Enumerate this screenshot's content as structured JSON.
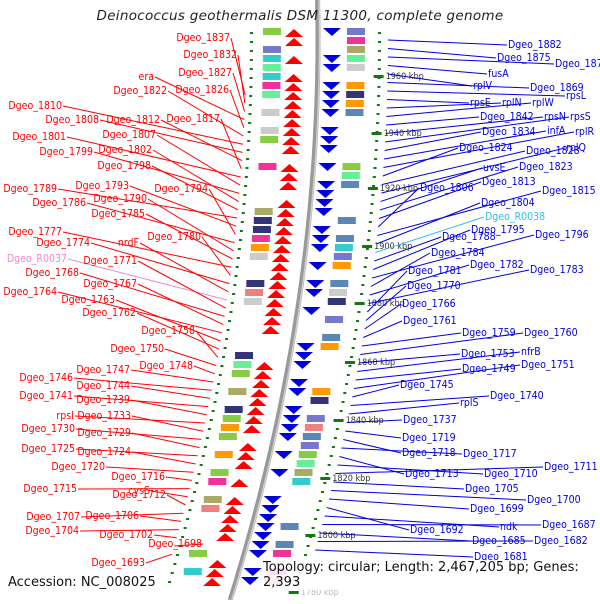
{
  "title": "Deinococcus geothermalis DSM 11300, complete genome",
  "footer": {
    "accession": "Accession: NC_008025",
    "summary": "Topology: circular; Length: 2,467,205 bp; Genes: 2,393"
  },
  "colors": {
    "forward": "#ff0000",
    "reverse": "#0000dd",
    "rna_left": "#ee88cc",
    "rna_right": "#33bbee",
    "tick": "#117711",
    "backbone": "#888888"
  },
  "ruler": [
    {
      "label": "1960 kbp"
    },
    {
      "label": "1940 kbp"
    },
    {
      "label": "1920 kbp"
    },
    {
      "label": "1900 kbp"
    },
    {
      "label": "1880 kbp"
    },
    {
      "label": "1860 kbp"
    },
    {
      "label": "1840 kbp"
    },
    {
      "label": "1820 kbp"
    },
    {
      "label": "1800 kbp"
    },
    {
      "label": "1780 kbp"
    }
  ],
  "left_labels": [
    {
      "text": "Dgeo_1837",
      "type": "gene"
    },
    {
      "text": "Dgeo_1832",
      "type": "gene"
    },
    {
      "text": "Dgeo_1827",
      "type": "gene"
    },
    {
      "text": "era",
      "type": "gene"
    },
    {
      "text": "Dgeo_1826",
      "type": "gene"
    },
    {
      "text": "Dgeo_1822",
      "type": "gene"
    },
    {
      "text": "Dgeo_1810",
      "type": "gene"
    },
    {
      "text": "Dgeo_1808",
      "type": "gene"
    },
    {
      "text": "Dgeo_1812",
      "type": "gene"
    },
    {
      "text": "Dgeo_1817",
      "type": "gene"
    },
    {
      "text": "Dgeo_1801",
      "type": "gene"
    },
    {
      "text": "Dgeo_1807",
      "type": "gene"
    },
    {
      "text": "Dgeo_1799",
      "type": "gene"
    },
    {
      "text": "Dgeo_1802",
      "type": "gene"
    },
    {
      "text": "Dgeo_1798",
      "type": "gene"
    },
    {
      "text": "Dgeo_1789",
      "type": "gene"
    },
    {
      "text": "Dgeo_1793",
      "type": "gene"
    },
    {
      "text": "Dgeo_1794",
      "type": "gene"
    },
    {
      "text": "Dgeo_1786",
      "type": "gene"
    },
    {
      "text": "Dgeo_1790",
      "type": "gene"
    },
    {
      "text": "Dgeo_1785",
      "type": "gene"
    },
    {
      "text": "Dgeo_1777",
      "type": "gene"
    },
    {
      "text": "Dgeo_1780",
      "type": "gene"
    },
    {
      "text": "Dgeo_1774",
      "type": "gene"
    },
    {
      "text": "nrdF",
      "type": "gene"
    },
    {
      "text": "Dgeo_R0037",
      "type": "rna"
    },
    {
      "text": "Dgeo_1771",
      "type": "gene"
    },
    {
      "text": "Dgeo_1768",
      "type": "gene"
    },
    {
      "text": "Dgeo_1767",
      "type": "gene"
    },
    {
      "text": "Dgeo_1764",
      "type": "gene"
    },
    {
      "text": "Dgeo_1763",
      "type": "gene"
    },
    {
      "text": "Dgeo_1762",
      "type": "gene"
    },
    {
      "text": "Dgeo_1758",
      "type": "gene"
    },
    {
      "text": "Dgeo_1750",
      "type": "gene"
    },
    {
      "text": "Dgeo_1748",
      "type": "gene"
    },
    {
      "text": "Dgeo_1747",
      "type": "gene"
    },
    {
      "text": "Dgeo_1746",
      "type": "gene"
    },
    {
      "text": "Dgeo_1744",
      "type": "gene"
    },
    {
      "text": "Dgeo_1741",
      "type": "gene"
    },
    {
      "text": "Dgeo_1739",
      "type": "gene"
    },
    {
      "text": "rpsI",
      "type": "gene"
    },
    {
      "text": "Dgeo_1733",
      "type": "gene"
    },
    {
      "text": "Dgeo_1730",
      "type": "gene"
    },
    {
      "text": "Dgeo_1729",
      "type": "gene"
    },
    {
      "text": "Dgeo_1725",
      "type": "gene"
    },
    {
      "text": "Dgeo_1724",
      "type": "gene"
    },
    {
      "text": "Dgeo_1720",
      "type": "gene"
    },
    {
      "text": "Dgeo_1716",
      "type": "gene"
    },
    {
      "text": "Dgeo_1715",
      "type": "gene"
    },
    {
      "text": "cysS",
      "type": "gene"
    },
    {
      "text": "Dgeo_1712",
      "type": "gene"
    },
    {
      "text": "Dgeo_1707",
      "type": "gene"
    },
    {
      "text": "Dgeo_1706",
      "type": "gene"
    },
    {
      "text": "Dgeo_1704",
      "type": "gene"
    },
    {
      "text": "Dgeo_1702",
      "type": "gene"
    },
    {
      "text": "Dgeo_1698",
      "type": "gene"
    },
    {
      "text": "Dgeo_1693",
      "type": "gene"
    }
  ],
  "right_labels": [
    {
      "text": "Dgeo_1882",
      "type": "gene"
    },
    {
      "text": "Dgeo_1875",
      "type": "gene"
    },
    {
      "text": "Dgeo_1879",
      "type": "gene"
    },
    {
      "text": "fusA",
      "type": "gene"
    },
    {
      "text": "rplV",
      "type": "gene"
    },
    {
      "text": "Dgeo_1869",
      "type": "gene"
    },
    {
      "text": "rpsL",
      "type": "gene"
    },
    {
      "text": "rpsE",
      "type": "gene"
    },
    {
      "text": "rplN",
      "type": "gene"
    },
    {
      "text": "rplW",
      "type": "gene"
    },
    {
      "text": "Dgeo_1842",
      "type": "gene"
    },
    {
      "text": "rpsN",
      "type": "gene"
    },
    {
      "text": "rpsS",
      "type": "gene"
    },
    {
      "text": "Dgeo_1834",
      "type": "gene"
    },
    {
      "text": "infA",
      "type": "gene"
    },
    {
      "text": "rplR",
      "type": "gene"
    },
    {
      "text": "Dgeo_1824",
      "type": "gene"
    },
    {
      "text": "Dgeo_1828",
      "type": "gene"
    },
    {
      "text": "rplQ",
      "type": "gene"
    },
    {
      "text": "uvsE",
      "type": "gene"
    },
    {
      "text": "Dgeo_1823",
      "type": "gene"
    },
    {
      "text": "Dgeo_1813",
      "type": "gene"
    },
    {
      "text": "Dgeo_1806",
      "type": "gene"
    },
    {
      "text": "Dgeo_1815",
      "type": "gene"
    },
    {
      "text": "Dgeo_1804",
      "type": "gene"
    },
    {
      "text": "Dgeo_R0038",
      "type": "rna"
    },
    {
      "text": "Dgeo_1788",
      "type": "gene"
    },
    {
      "text": "Dgeo_1795",
      "type": "gene"
    },
    {
      "text": "Dgeo_1796",
      "type": "gene"
    },
    {
      "text": "Dgeo_1784",
      "type": "gene"
    },
    {
      "text": "Dgeo_1782",
      "type": "gene"
    },
    {
      "text": "Dgeo_1783",
      "type": "gene"
    },
    {
      "text": "Dgeo_1781",
      "type": "gene"
    },
    {
      "text": "Dgeo_1770",
      "type": "gene"
    },
    {
      "text": "Dgeo_1766",
      "type": "gene"
    },
    {
      "text": "Dgeo_1761",
      "type": "gene"
    },
    {
      "text": "Dgeo_1759",
      "type": "gene"
    },
    {
      "text": "Dgeo_1760",
      "type": "gene"
    },
    {
      "text": "Dgeo_1753",
      "type": "gene"
    },
    {
      "text": "nfrB",
      "type": "gene"
    },
    {
      "text": "Dgeo_1749",
      "type": "gene"
    },
    {
      "text": "Dgeo_1751",
      "type": "gene"
    },
    {
      "text": "Dgeo_1745",
      "type": "gene"
    },
    {
      "text": "Dgeo_1740",
      "type": "gene"
    },
    {
      "text": "rplS",
      "type": "gene"
    },
    {
      "text": "Dgeo_1737",
      "type": "gene"
    },
    {
      "text": "Dgeo_1719",
      "type": "gene"
    },
    {
      "text": "Dgeo_1718",
      "type": "gene"
    },
    {
      "text": "Dgeo_1717",
      "type": "gene"
    },
    {
      "text": "Dgeo_1713",
      "type": "gene"
    },
    {
      "text": "Dgeo_1710",
      "type": "gene"
    },
    {
      "text": "Dgeo_1711",
      "type": "gene"
    },
    {
      "text": "Dgeo_1705",
      "type": "gene"
    },
    {
      "text": "Dgeo_1700",
      "type": "gene"
    },
    {
      "text": "Dgeo_1699",
      "type": "gene"
    },
    {
      "text": "Dgeo_1692",
      "type": "gene"
    },
    {
      "text": "ndk",
      "type": "gene"
    },
    {
      "text": "Dgeo_1687",
      "type": "gene"
    },
    {
      "text": "Dgeo_1685",
      "type": "gene"
    },
    {
      "text": "Dgeo_1682",
      "type": "gene"
    },
    {
      "text": "Dgeo_1681",
      "type": "gene"
    }
  ]
}
